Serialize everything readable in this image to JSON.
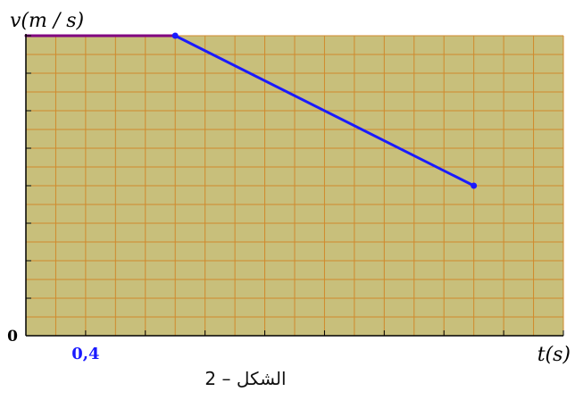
{
  "figure": {
    "caption": "الشكل – 2"
  },
  "chart_data": {
    "type": "line",
    "ylabel": "v(m / s)",
    "xlabel": "t(s)",
    "origin_label": "0",
    "x_tick_label": {
      "value": 0.4,
      "text": "0,4"
    },
    "xlim": [
      0,
      3.6
    ],
    "ylim": [
      0,
      4
    ],
    "grid": true,
    "segments": [
      {
        "x": [
          0,
          1.0
        ],
        "y": [
          4,
          4
        ],
        "color": "#800080"
      },
      {
        "x": [
          1.0,
          3.0
        ],
        "y": [
          4,
          2
        ],
        "color": "#1a1aff"
      }
    ],
    "points": [
      {
        "x": 1.0,
        "y": 4
      },
      {
        "x": 3.0,
        "y": 2
      }
    ],
    "colors": {
      "plot_background": "#c8bf7b",
      "grid_line": "#d08a2c",
      "tick_label": "#1a1aff",
      "axis": "#000000"
    }
  }
}
